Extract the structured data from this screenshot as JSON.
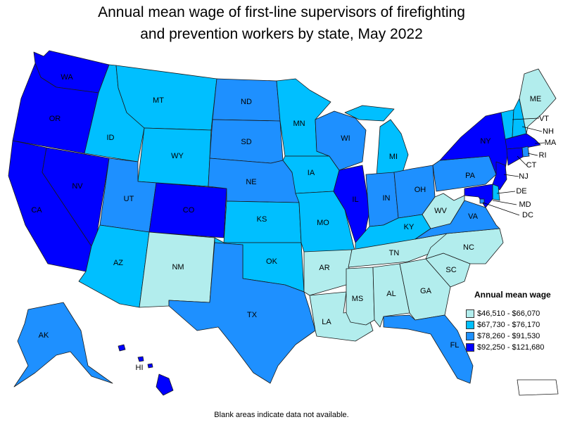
{
  "title": {
    "line1": "Annual mean wage of first-line supervisors of firefighting",
    "line2": "and prevention workers by state, May 2022"
  },
  "colors": {
    "tier1": "#b2eded",
    "tier2": "#00bfff",
    "tier3": "#1e90ff",
    "tier4": "#0000ff",
    "border": "#1a1a1a",
    "no_data": "#ffffff"
  },
  "legend": {
    "title": "Annual mean wage",
    "items": [
      {
        "label": "$46,510 - $66,070",
        "tier": "tier1"
      },
      {
        "label": "$67,730 - $76,170",
        "tier": "tier2"
      },
      {
        "label": "$78,260 - $91,530",
        "tier": "tier3"
      },
      {
        "label": "$92,250 - $121,680",
        "tier": "tier4"
      }
    ]
  },
  "states": {
    "WA": "tier4",
    "OR": "tier4",
    "CA": "tier4",
    "NV": "tier4",
    "ID": "tier2",
    "MT": "tier2",
    "WY": "tier2",
    "UT": "tier3",
    "CO": "tier4",
    "AZ": "tier2",
    "NM": "tier1",
    "ND": "tier3",
    "SD": "tier3",
    "NE": "tier3",
    "KS": "tier2",
    "OK": "tier2",
    "TX": "tier3",
    "MN": "tier2",
    "IA": "tier2",
    "MO": "tier2",
    "AR": "tier1",
    "LA": "tier1",
    "WI": "tier3",
    "IL": "tier4",
    "MI": "tier2",
    "IN": "tier3",
    "OH": "tier3",
    "KY": "tier2",
    "TN": "tier1",
    "MS": "tier1",
    "AL": "tier1",
    "GA": "tier1",
    "FL": "tier3",
    "SC": "tier1",
    "NC": "tier1",
    "VA": "tier3",
    "WV": "tier1",
    "PA": "tier3",
    "NY": "tier4",
    "VT": "tier2",
    "NH": "tier2",
    "ME": "tier1",
    "MA": "tier4",
    "RI": "tier3",
    "CT": "tier4",
    "NJ": "tier4",
    "DE": "tier2",
    "MD": "tier4",
    "DC": "tier3",
    "AK": "tier3",
    "HI": "tier4",
    "PR": "no_data"
  },
  "labels": {
    "WA": "WA",
    "OR": "OR",
    "CA": "CA",
    "NV": "NV",
    "ID": "ID",
    "MT": "MT",
    "WY": "WY",
    "UT": "UT",
    "CO": "CO",
    "AZ": "AZ",
    "NM": "NM",
    "ND": "ND",
    "SD": "SD",
    "NE": "NE",
    "KS": "KS",
    "OK": "OK",
    "TX": "TX",
    "MN": "MN",
    "IA": "IA",
    "MO": "MO",
    "AR": "AR",
    "LA": "LA",
    "WI": "WI",
    "IL": "IL",
    "MI": "MI",
    "IN": "IN",
    "OH": "OH",
    "KY": "KY",
    "TN": "TN",
    "MS": "MS",
    "AL": "AL",
    "GA": "GA",
    "FL": "FL",
    "SC": "SC",
    "NC": "NC",
    "VA": "VA",
    "WV": "WV",
    "PA": "PA",
    "NY": "NY",
    "VT": "VT",
    "NH": "NH",
    "ME": "ME",
    "MA": "MA",
    "RI": "RI",
    "CT": "CT",
    "NJ": "NJ",
    "DE": "DE",
    "MD": "MD",
    "DC": "DC",
    "AK": "AK",
    "HI": "HI"
  },
  "footnote": "Blank areas indicate data not available."
}
